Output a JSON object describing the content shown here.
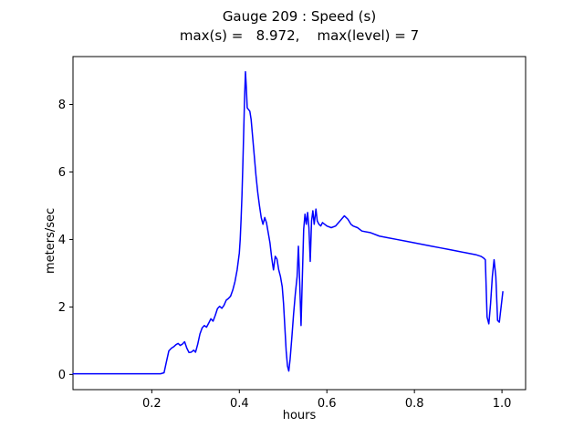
{
  "chart_data": {
    "type": "line",
    "title": "Gauge 209 : Speed (s)",
    "subtitle": "max(s) =   8.972,    max(level) = 7",
    "xlabel": "hours",
    "ylabel": "meters/sec",
    "xlim": [
      0.02,
      1.054
    ],
    "ylim": [
      -0.45,
      9.42
    ],
    "grid": false,
    "legend": "none",
    "axes_color": "#000000",
    "xticks": {
      "values": [
        0.2,
        0.4,
        0.6,
        0.8,
        1.0
      ],
      "labels": [
        "0.2",
        "0.4",
        "0.6",
        "0.8",
        "1.0"
      ]
    },
    "yticks": {
      "values": [
        0,
        2,
        4,
        6,
        8
      ],
      "labels": [
        "0",
        "2",
        "4",
        "6",
        "8"
      ]
    },
    "max_speed": 8.972,
    "max_level": 7,
    "series": [
      {
        "name": "speed",
        "color": "#0000ff",
        "line_width": 1.5,
        "points": [
          [
            0.02,
            0.02
          ],
          [
            0.06,
            0.02
          ],
          [
            0.1,
            0.02
          ],
          [
            0.14,
            0.02
          ],
          [
            0.18,
            0.02
          ],
          [
            0.22,
            0.02
          ],
          [
            0.228,
            0.05
          ],
          [
            0.233,
            0.35
          ],
          [
            0.239,
            0.7
          ],
          [
            0.245,
            0.78
          ],
          [
            0.25,
            0.82
          ],
          [
            0.255,
            0.88
          ],
          [
            0.26,
            0.92
          ],
          [
            0.265,
            0.86
          ],
          [
            0.27,
            0.9
          ],
          [
            0.275,
            0.97
          ],
          [
            0.28,
            0.78
          ],
          [
            0.285,
            0.65
          ],
          [
            0.29,
            0.66
          ],
          [
            0.296,
            0.72
          ],
          [
            0.3,
            0.66
          ],
          [
            0.305,
            0.9
          ],
          [
            0.31,
            1.2
          ],
          [
            0.315,
            1.38
          ],
          [
            0.32,
            1.45
          ],
          [
            0.325,
            1.4
          ],
          [
            0.33,
            1.52
          ],
          [
            0.335,
            1.65
          ],
          [
            0.34,
            1.58
          ],
          [
            0.345,
            1.75
          ],
          [
            0.35,
            1.95
          ],
          [
            0.355,
            2.02
          ],
          [
            0.36,
            1.96
          ],
          [
            0.365,
            2.05
          ],
          [
            0.37,
            2.2
          ],
          [
            0.375,
            2.25
          ],
          [
            0.38,
            2.32
          ],
          [
            0.385,
            2.5
          ],
          [
            0.39,
            2.75
          ],
          [
            0.395,
            3.1
          ],
          [
            0.4,
            3.6
          ],
          [
            0.402,
            4.0
          ],
          [
            0.404,
            4.6
          ],
          [
            0.406,
            5.3
          ],
          [
            0.408,
            6.2
          ],
          [
            0.41,
            7.2
          ],
          [
            0.412,
            8.2
          ],
          [
            0.414,
            8.972
          ],
          [
            0.416,
            8.5
          ],
          [
            0.418,
            7.9
          ],
          [
            0.421,
            7.85
          ],
          [
            0.424,
            7.8
          ],
          [
            0.427,
            7.55
          ],
          [
            0.43,
            7.1
          ],
          [
            0.434,
            6.5
          ],
          [
            0.438,
            5.9
          ],
          [
            0.442,
            5.4
          ],
          [
            0.446,
            5.0
          ],
          [
            0.45,
            4.65
          ],
          [
            0.454,
            4.45
          ],
          [
            0.458,
            4.65
          ],
          [
            0.462,
            4.5
          ],
          [
            0.466,
            4.2
          ],
          [
            0.47,
            3.9
          ],
          [
            0.474,
            3.45
          ],
          [
            0.478,
            3.1
          ],
          [
            0.482,
            3.5
          ],
          [
            0.486,
            3.42
          ],
          [
            0.49,
            3.1
          ],
          [
            0.494,
            2.9
          ],
          [
            0.498,
            2.6
          ],
          [
            0.501,
            2.1
          ],
          [
            0.504,
            1.4
          ],
          [
            0.507,
            0.7
          ],
          [
            0.51,
            0.25
          ],
          [
            0.513,
            0.1
          ],
          [
            0.516,
            0.45
          ],
          [
            0.52,
            1.1
          ],
          [
            0.524,
            1.8
          ],
          [
            0.528,
            2.4
          ],
          [
            0.532,
            2.9
          ],
          [
            0.535,
            3.8
          ],
          [
            0.538,
            2.7
          ],
          [
            0.541,
            1.45
          ],
          [
            0.544,
            2.9
          ],
          [
            0.547,
            4.3
          ],
          [
            0.55,
            4.75
          ],
          [
            0.553,
            4.45
          ],
          [
            0.556,
            4.8
          ],
          [
            0.559,
            4.35
          ],
          [
            0.562,
            3.35
          ],
          [
            0.565,
            4.55
          ],
          [
            0.568,
            4.85
          ],
          [
            0.571,
            4.45
          ],
          [
            0.575,
            4.9
          ],
          [
            0.578,
            4.55
          ],
          [
            0.582,
            4.45
          ],
          [
            0.586,
            4.4
          ],
          [
            0.59,
            4.5
          ],
          [
            0.595,
            4.45
          ],
          [
            0.6,
            4.4
          ],
          [
            0.61,
            4.35
          ],
          [
            0.62,
            4.4
          ],
          [
            0.63,
            4.55
          ],
          [
            0.64,
            4.7
          ],
          [
            0.648,
            4.6
          ],
          [
            0.655,
            4.45
          ],
          [
            0.66,
            4.4
          ],
          [
            0.67,
            4.35
          ],
          [
            0.68,
            4.25
          ],
          [
            0.7,
            4.2
          ],
          [
            0.72,
            4.1
          ],
          [
            0.74,
            4.05
          ],
          [
            0.76,
            4.0
          ],
          [
            0.78,
            3.95
          ],
          [
            0.8,
            3.9
          ],
          [
            0.82,
            3.85
          ],
          [
            0.84,
            3.8
          ],
          [
            0.86,
            3.75
          ],
          [
            0.88,
            3.7
          ],
          [
            0.9,
            3.65
          ],
          [
            0.92,
            3.6
          ],
          [
            0.94,
            3.55
          ],
          [
            0.952,
            3.5
          ],
          [
            0.958,
            3.45
          ],
          [
            0.962,
            3.4
          ],
          [
            0.966,
            1.7
          ],
          [
            0.97,
            1.5
          ],
          [
            0.974,
            2.1
          ],
          [
            0.978,
            2.9
          ],
          [
            0.982,
            3.4
          ],
          [
            0.986,
            2.9
          ],
          [
            0.99,
            1.6
          ],
          [
            0.994,
            1.55
          ],
          [
            0.998,
            2.0
          ],
          [
            1.002,
            2.45
          ]
        ]
      }
    ]
  }
}
